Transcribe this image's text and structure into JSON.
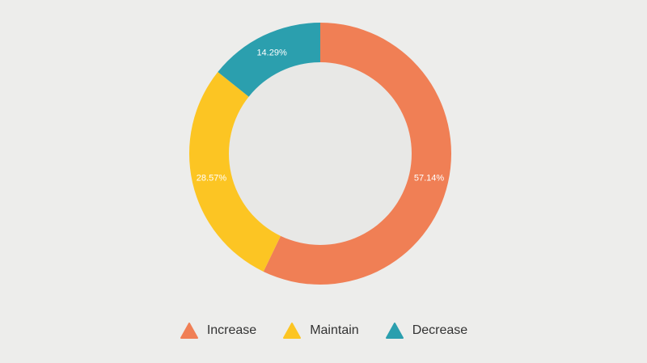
{
  "chart_data": {
    "type": "pie",
    "variant": "donut",
    "title": "",
    "legend_position": "bottom-center",
    "series": [
      {
        "name": "Increase",
        "value": 57.14,
        "label": "57.14%",
        "color": "#f07f55"
      },
      {
        "name": "Maintain",
        "value": 28.57,
        "label": "28.57%",
        "color": "#fcc523"
      },
      {
        "name": "Decrease",
        "value": 14.29,
        "label": "14.29%",
        "color": "#2b9fae"
      }
    ]
  },
  "legend": {
    "items": [
      {
        "label": "Increase",
        "color": "#f07f55",
        "icon": "triangle-icon"
      },
      {
        "label": "Maintain",
        "color": "#fcc523",
        "icon": "triangle-icon"
      },
      {
        "label": "Decrease",
        "color": "#2b9fae",
        "icon": "triangle-icon"
      }
    ]
  },
  "colors": {
    "background": "#ededeb",
    "hole": "#e8e8e6",
    "label_text": "#ffffff"
  }
}
